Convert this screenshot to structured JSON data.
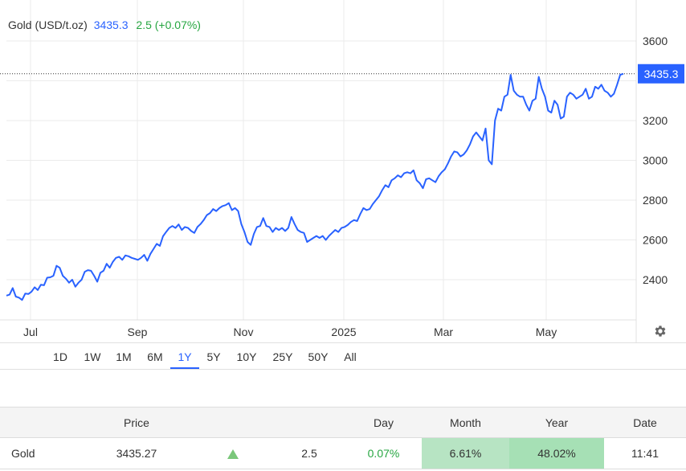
{
  "header": {
    "name": "Gold (USD/t.oz)",
    "price": "3435.3",
    "change": "2.5 (+0.07%)"
  },
  "colors": {
    "line": "#2962ff",
    "positive": "#26a641",
    "label_bg": "#2962ff"
  },
  "chart_data": {
    "type": "line",
    "title": "Gold (USD/t.oz)",
    "x_tick_labels": [
      "Jul",
      "Sep",
      "Nov",
      "2025",
      "Mar",
      "May"
    ],
    "y_tick_labels": [
      "2400",
      "2600",
      "2800",
      "3000",
      "3200",
      "3600"
    ],
    "ylim": [
      2250,
      3800
    ],
    "grid": true,
    "last_value_label": "3435.3",
    "series": [
      {
        "values": [
          2320,
          2325,
          2358,
          2315,
          2310,
          2298,
          2330,
          2328,
          2340,
          2362,
          2348,
          2375,
          2372,
          2410,
          2412,
          2420,
          2470,
          2460,
          2420,
          2405,
          2385,
          2400,
          2365,
          2385,
          2400,
          2440,
          2448,
          2445,
          2420,
          2390,
          2435,
          2445,
          2480,
          2460,
          2490,
          2510,
          2515,
          2500,
          2522,
          2518,
          2510,
          2505,
          2500,
          2510,
          2525,
          2495,
          2530,
          2555,
          2580,
          2570,
          2618,
          2640,
          2660,
          2670,
          2660,
          2678,
          2650,
          2665,
          2660,
          2645,
          2635,
          2665,
          2680,
          2700,
          2725,
          2735,
          2755,
          2745,
          2760,
          2770,
          2775,
          2785,
          2750,
          2760,
          2745,
          2680,
          2640,
          2590,
          2575,
          2630,
          2665,
          2670,
          2710,
          2670,
          2665,
          2640,
          2660,
          2650,
          2660,
          2645,
          2660,
          2715,
          2680,
          2650,
          2640,
          2635,
          2590,
          2600,
          2610,
          2620,
          2610,
          2620,
          2600,
          2620,
          2635,
          2650,
          2640,
          2660,
          2665,
          2675,
          2690,
          2700,
          2695,
          2730,
          2760,
          2750,
          2755,
          2780,
          2800,
          2820,
          2850,
          2875,
          2865,
          2900,
          2910,
          2925,
          2915,
          2935,
          2940,
          2935,
          2950,
          2900,
          2885,
          2860,
          2905,
          2910,
          2900,
          2890,
          2920,
          2940,
          2955,
          2985,
          3020,
          3045,
          3040,
          3020,
          3030,
          3050,
          3080,
          3120,
          3140,
          3120,
          3100,
          3160,
          3000,
          2980,
          3200,
          3260,
          3250,
          3320,
          3330,
          3430,
          3350,
          3330,
          3320,
          3320,
          3280,
          3250,
          3300,
          3310,
          3420,
          3360,
          3320,
          3250,
          3240,
          3300,
          3280,
          3210,
          3220,
          3320,
          3340,
          3330,
          3310,
          3320,
          3330,
          3360,
          3310,
          3320,
          3370,
          3360,
          3380,
          3350,
          3340,
          3320,
          3335,
          3380,
          3430,
          3435.3
        ]
      }
    ]
  },
  "range_buttons": [
    "1D",
    "1W",
    "1M",
    "6M",
    "1Y",
    "5Y",
    "10Y",
    "25Y",
    "50Y",
    "All"
  ],
  "active_range": "1Y",
  "table": {
    "headers": {
      "name": "",
      "price": "Price",
      "arrow": "",
      "change": "",
      "day": "Day",
      "month": "Month",
      "year": "Year",
      "date": "Date"
    },
    "row": {
      "name": "Gold",
      "price": "3435.27",
      "change": "2.5",
      "day": "0.07%",
      "month": "6.61%",
      "year": "48.02%",
      "date": "11:41"
    }
  },
  "icons": {
    "settings": "gear-icon",
    "direction": "up-arrow-icon"
  }
}
